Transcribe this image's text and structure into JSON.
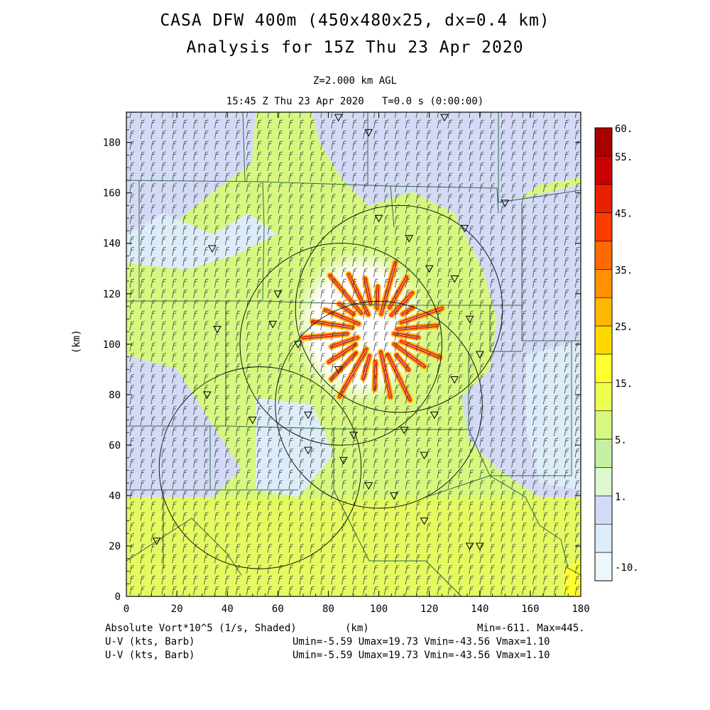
{
  "title": {
    "line1": "CASA DFW 400m (450x480x25, dx=0.4 km)",
    "line2": "Analysis for 15Z Thu 23 Apr 2020"
  },
  "subtitle": {
    "level": "Z=2.000 km AGL",
    "time": "15:45 Z Thu 23 Apr 2020   T=0.0 s (0:00:00)"
  },
  "axes": {
    "xlabel": "(km)",
    "ylabel": "(km)",
    "x_ticks": [
      "0",
      "20",
      "40",
      "60",
      "80",
      "100",
      "120",
      "140",
      "160",
      "180"
    ],
    "y_ticks": [
      "0",
      "20",
      "40",
      "60",
      "80",
      "100",
      "120",
      "140",
      "160",
      "180"
    ],
    "xlim": [
      0,
      180
    ],
    "ylim": [
      0,
      192
    ]
  },
  "colorbar": {
    "labels": [
      "60.",
      "55.",
      "45.",
      "35.",
      "25.",
      "15.",
      "5.",
      "1.",
      "-10."
    ],
    "colors": [
      "#aa0000",
      "#cc0000",
      "#e82000",
      "#ff3c00",
      "#ff6a00",
      "#ff9000",
      "#ffb800",
      "#ffd800",
      "#ffff30",
      "#ecff50",
      "#d6f880",
      "#c4f0a0",
      "#dcf8cc",
      "#d4daf6",
      "#dcecf8",
      "#ecf6fc"
    ],
    "domain": "vorticity"
  },
  "footer": {
    "field": "Absolute Vort*10^5 (1/s, Shaded)",
    "unit": "(km)",
    "minmax": "Min=-611. Max=445.",
    "overlay1_name": "U-V (kts, Barb)",
    "overlay1_stats": "Umin=-5.59 Umax=19.73 Vmin=-43.56 Vmax=1.10",
    "overlay2_name": "U-V (kts, Barb)",
    "overlay2_stats": "Umin=-5.59 Umax=19.73 Vmin=-43.56 Vmax=1.10"
  },
  "map_data": {
    "radar_rings_km": [
      {
        "cx": 108,
        "cy": 114,
        "r": 41
      },
      {
        "cx": 85,
        "cy": 100,
        "r": 40
      },
      {
        "cx": 100,
        "cy": 76,
        "r": 41
      },
      {
        "cx": 53,
        "cy": 51,
        "r": 40
      }
    ],
    "wind_barb_density_km": 4.2,
    "storm_center_km": [
      92,
      108
    ]
  }
}
